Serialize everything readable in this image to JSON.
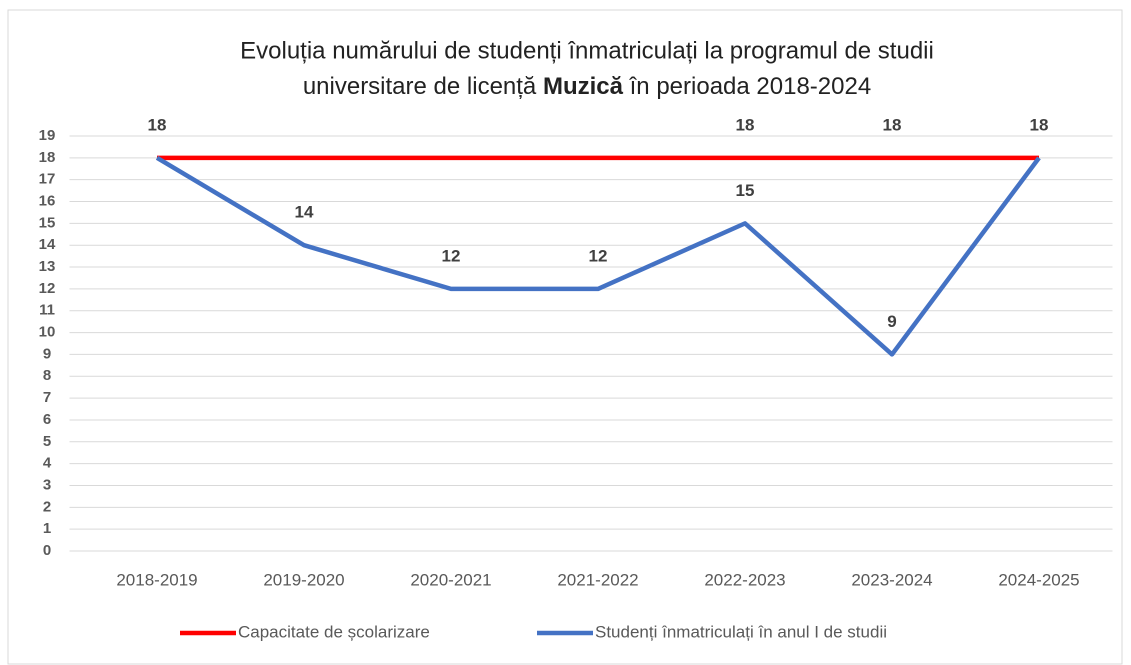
{
  "chart_data": {
    "type": "line",
    "title": [
      "Evoluția numărului de studenți înmatriculați la programul de studii",
      "universitare de licență ",
      "Muzică",
      " în perioada 2018-2024"
    ],
    "categories": [
      "2018-2019",
      "2019-2020",
      "2020-2021",
      "2021-2022",
      "2022-2023",
      "2023-2024",
      "2024-2025"
    ],
    "series": [
      {
        "name": "Capacitate de școlarizare",
        "color": "#ff0000",
        "values": [
          18,
          18,
          18,
          18,
          18,
          18,
          18
        ],
        "value_labels": [
          null,
          null,
          null,
          null,
          "18",
          "18",
          null
        ]
      },
      {
        "name": "Studenți înmatriculați în anul I de studii",
        "color": "#4472c4",
        "values": [
          18,
          14,
          12,
          12,
          15,
          9,
          18
        ]
      }
    ],
    "ylim": [
      0,
      19
    ],
    "yticks": [
      0,
      1,
      2,
      3,
      4,
      5,
      6,
      7,
      8,
      9,
      10,
      11,
      12,
      13,
      14,
      15,
      16,
      17,
      18,
      19
    ],
    "grid": true,
    "legend": "bottom"
  }
}
